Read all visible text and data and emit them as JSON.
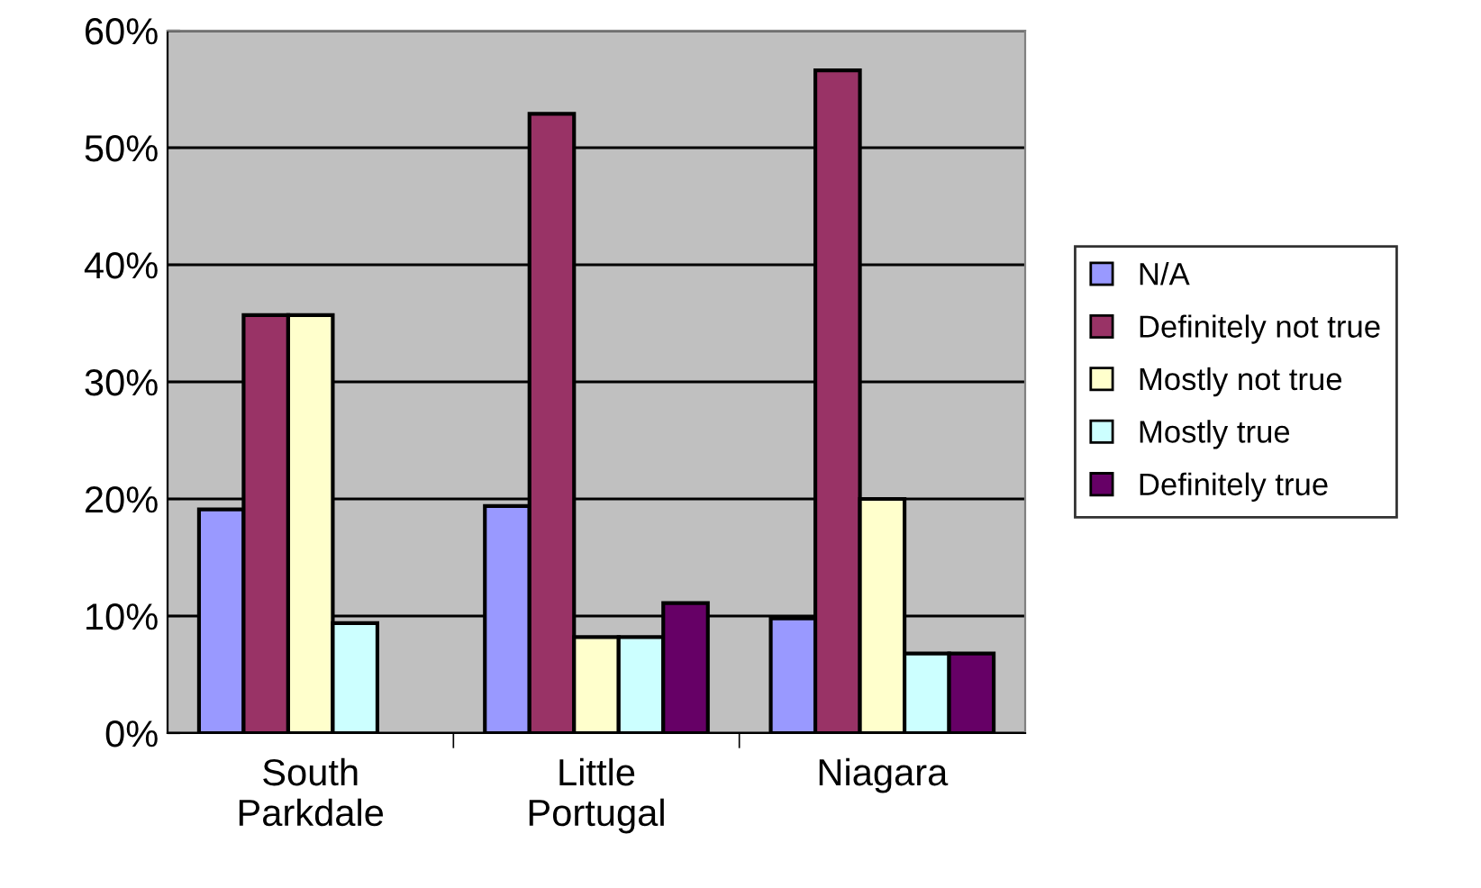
{
  "chart_data": {
    "type": "bar",
    "categories": [
      "South\nParkdale",
      "Little\nPortugal",
      "Niagara"
    ],
    "series": [
      {
        "name": "N/A",
        "color": "#9999ff",
        "values": [
          19.1,
          19.4,
          9.8
        ]
      },
      {
        "name": "Definitely not true",
        "color": "#993366",
        "values": [
          35.7,
          52.9,
          56.6
        ]
      },
      {
        "name": "Mostly not true",
        "color": "#ffffcc",
        "values": [
          35.7,
          8.2,
          20.0
        ]
      },
      {
        "name": "Mostly true",
        "color": "#ccffff",
        "values": [
          9.4,
          8.2,
          6.8
        ]
      },
      {
        "name": "Definitely true",
        "color": "#660066",
        "values": [
          null,
          11.1,
          6.8
        ]
      }
    ],
    "ylim": [
      0,
      60
    ],
    "yticks": [
      {
        "value": 0,
        "label": "0%"
      },
      {
        "value": 10,
        "label": "10%"
      },
      {
        "value": 20,
        "label": "20%"
      },
      {
        "value": 30,
        "label": "30%"
      },
      {
        "value": 40,
        "label": "40%"
      },
      {
        "value": 50,
        "label": "50%"
      },
      {
        "value": 60,
        "label": "60%"
      }
    ],
    "grid": "y",
    "legend": "right"
  }
}
